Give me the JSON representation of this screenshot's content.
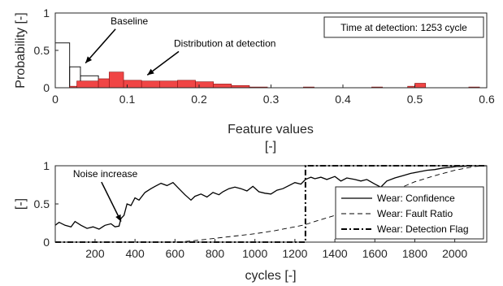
{
  "chart_data": [
    {
      "type": "bar",
      "xlabel_line1": "Feature values",
      "xlabel_line2": "[-]",
      "ylabel": "Probability [-]",
      "xlim": [
        0,
        0.6
      ],
      "ylim": [
        0,
        1
      ],
      "xticks": [
        "0",
        "0.1",
        "0.2",
        "0.3",
        "0.4",
        "0.5",
        "0.6"
      ],
      "yticks": [
        "0",
        "0.5",
        "1"
      ],
      "info_box": "Time at detection: 1253 cycle",
      "series": [
        {
          "name": "Baseline",
          "style": "outline",
          "color": "#000000",
          "bins": [
            {
              "x0": 0.0,
              "x1": 0.02,
              "value": 0.6
            },
            {
              "x0": 0.02,
              "x1": 0.035,
              "value": 0.28
            },
            {
              "x0": 0.035,
              "x1": 0.06,
              "value": 0.16
            },
            {
              "x0": 0.06,
              "x1": 0.08,
              "value": 0.05
            }
          ]
        },
        {
          "name": "Distribution at detection",
          "style": "filled",
          "color": "#f04545",
          "bins": [
            {
              "x0": 0.02,
              "x1": 0.03,
              "value": 0.02
            },
            {
              "x0": 0.03,
              "x1": 0.06,
              "value": 0.09
            },
            {
              "x0": 0.06,
              "x1": 0.075,
              "value": 0.12
            },
            {
              "x0": 0.075,
              "x1": 0.095,
              "value": 0.21
            },
            {
              "x0": 0.095,
              "x1": 0.12,
              "value": 0.1
            },
            {
              "x0": 0.12,
              "x1": 0.145,
              "value": 0.09
            },
            {
              "x0": 0.145,
              "x1": 0.17,
              "value": 0.09
            },
            {
              "x0": 0.17,
              "x1": 0.195,
              "value": 0.1
            },
            {
              "x0": 0.195,
              "x1": 0.22,
              "value": 0.08
            },
            {
              "x0": 0.22,
              "x1": 0.245,
              "value": 0.05
            },
            {
              "x0": 0.245,
              "x1": 0.27,
              "value": 0.03
            },
            {
              "x0": 0.27,
              "x1": 0.295,
              "value": 0.01
            },
            {
              "x0": 0.345,
              "x1": 0.36,
              "value": 0.01
            },
            {
              "x0": 0.44,
              "x1": 0.455,
              "value": 0.01
            },
            {
              "x0": 0.49,
              "x1": 0.5,
              "value": 0.02
            },
            {
              "x0": 0.5,
              "x1": 0.515,
              "value": 0.06
            },
            {
              "x0": 0.575,
              "x1": 0.59,
              "value": 0.01
            }
          ]
        }
      ],
      "annotations": [
        {
          "text": "Baseline",
          "label_at": [
            0.077,
            0.85
          ],
          "arrow_to": [
            0.042,
            0.33
          ]
        },
        {
          "text": "Distribution at detection",
          "label_at": [
            0.165,
            0.55
          ],
          "arrow_to": [
            0.128,
            0.17
          ]
        }
      ]
    },
    {
      "type": "line",
      "xlabel": "cycles [-]",
      "ylabel": "[-]",
      "xlim": [
        1,
        2160
      ],
      "ylim": [
        0,
        1
      ],
      "xticks": [
        "200",
        "400",
        "600",
        "800",
        "1000",
        "1200",
        "1400",
        "1600",
        "1800",
        "2000"
      ],
      "yticks": [
        "0",
        "0.5",
        "1"
      ],
      "legend": "bottom-right",
      "series": [
        {
          "name": "Wear: Confidence",
          "dash": "solid",
          "x": [
            1,
            20,
            50,
            80,
            100,
            130,
            160,
            190,
            220,
            250,
            280,
            300,
            320,
            330,
            345,
            360,
            380,
            400,
            420,
            450,
            480,
            500,
            530,
            560,
            590,
            620,
            650,
            680,
            700,
            730,
            760,
            790,
            820,
            840,
            870,
            900,
            930,
            960,
            990,
            1020,
            1050,
            1080,
            1110,
            1140,
            1170,
            1200,
            1230,
            1253,
            1280,
            1300,
            1330,
            1360,
            1400,
            1430,
            1460,
            1500,
            1530,
            1560,
            1600,
            1630,
            1660,
            1700,
            1740,
            1780,
            1820,
            1860,
            1900,
            1940,
            1980,
            2010,
            2040,
            2080,
            2120,
            2160
          ],
          "y": [
            0.22,
            0.26,
            0.22,
            0.2,
            0.27,
            0.22,
            0.18,
            0.2,
            0.17,
            0.22,
            0.24,
            0.2,
            0.21,
            0.31,
            0.35,
            0.5,
            0.48,
            0.58,
            0.55,
            0.65,
            0.7,
            0.73,
            0.77,
            0.74,
            0.78,
            0.7,
            0.62,
            0.55,
            0.6,
            0.63,
            0.59,
            0.65,
            0.62,
            0.66,
            0.7,
            0.72,
            0.7,
            0.67,
            0.73,
            0.66,
            0.64,
            0.63,
            0.68,
            0.7,
            0.74,
            0.78,
            0.76,
            0.82,
            0.85,
            0.83,
            0.85,
            0.82,
            0.86,
            0.8,
            0.84,
            0.82,
            0.8,
            0.82,
            0.76,
            0.72,
            0.8,
            0.84,
            0.87,
            0.9,
            0.92,
            0.94,
            0.95,
            0.97,
            0.98,
            0.99,
            0.99,
            1.0,
            1.0,
            1.0
          ]
        },
        {
          "name": "Wear: Fault Ratio",
          "dash": "dashed",
          "x": [
            1,
            620,
            700,
            800,
            900,
            1000,
            1100,
            1200,
            1253,
            1300,
            1400,
            1500,
            1600,
            1700,
            1800,
            1900,
            2000,
            2100,
            2160
          ],
          "y": [
            0,
            0,
            0.02,
            0.05,
            0.08,
            0.11,
            0.15,
            0.2,
            0.23,
            0.27,
            0.35,
            0.45,
            0.57,
            0.68,
            0.79,
            0.87,
            0.94,
            0.99,
            1.0
          ]
        },
        {
          "name": "Wear: Detection Flag",
          "dash": "dashdot",
          "x": [
            1,
            1253,
            1253,
            2160
          ],
          "y": [
            0,
            0,
            1,
            1
          ]
        }
      ],
      "annotations": [
        {
          "text": "Noise increase",
          "label_at": [
            90,
            0.85
          ],
          "arrow_to": [
            330,
            0.27
          ]
        }
      ]
    }
  ]
}
